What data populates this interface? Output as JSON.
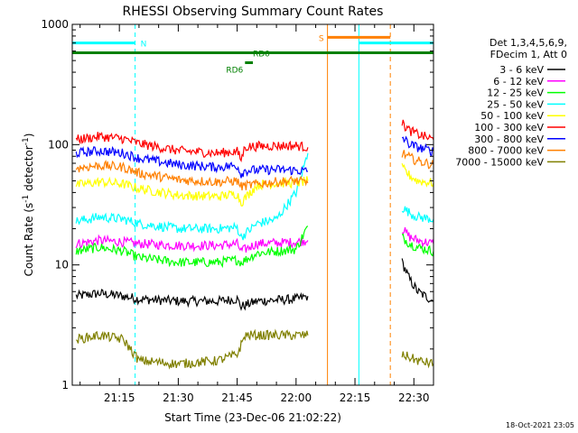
{
  "chart_data": {
    "type": "line",
    "title": "RHESSI Observing Summary Count Rates",
    "xlabel": "Start Time (23-Dec-06 21:02:22)",
    "ylabel": "Count Rate (s",
    "ylabel_sup1": "-1",
    "ylabel_mid": " detector",
    "ylabel_sup2": "-1",
    "ylabel_end": ")",
    "y_scale": "log",
    "ylim": [
      1,
      1000
    ],
    "y_ticks": [
      {
        "value": 1,
        "label": "1"
      },
      {
        "value": 10,
        "label": "10"
      },
      {
        "value": 100,
        "label": "100"
      },
      {
        "value": 1000,
        "label": "1000"
      }
    ],
    "xlim_minutes": [
      3,
      95
    ],
    "x_ticks": [
      {
        "minute": 15,
        "label": "21:15"
      },
      {
        "minute": 30,
        "label": "21:30"
      },
      {
        "minute": 45,
        "label": "21:45"
      },
      {
        "minute": 60,
        "label": "22:00"
      },
      {
        "minute": 75,
        "label": "22:15"
      },
      {
        "minute": 90,
        "label": "22:30"
      }
    ],
    "legend_header": [
      "Det 1,3,4,5,6,9,",
      "FDecim 1, Att 0"
    ],
    "legend_position": "right",
    "timestamp": "18-Oct-2021 23:05",
    "series": [
      {
        "name": "3 - 6 keV",
        "color": "#000000",
        "segments": [
          [
            [
              4,
              5.5
            ],
            [
              10,
              5.8
            ],
            [
              16,
              5.5
            ],
            [
              20,
              5.2
            ],
            [
              30,
              5.0
            ],
            [
              40,
              5.0
            ],
            [
              45,
              5.2
            ],
            [
              46,
              4.5
            ],
            [
              50,
              5.0
            ],
            [
              60,
              5.2
            ],
            [
              63,
              5.5
            ]
          ],
          [
            [
              87,
              10.5
            ],
            [
              89,
              7.5
            ],
            [
              91,
              6.0
            ],
            [
              95,
              5.0
            ]
          ]
        ]
      },
      {
        "name": "6 - 12 keV",
        "color": "#ff00ff",
        "segments": [
          [
            [
              4,
              15
            ],
            [
              10,
              16
            ],
            [
              16,
              15.5
            ],
            [
              20,
              15
            ],
            [
              30,
              14.5
            ],
            [
              40,
              14.5
            ],
            [
              45,
              15
            ],
            [
              46,
              13
            ],
            [
              50,
              15
            ],
            [
              60,
              15.5
            ],
            [
              63,
              16
            ]
          ],
          [
            [
              87,
              20
            ],
            [
              89,
              17
            ],
            [
              91,
              16
            ],
            [
              95,
              15
            ]
          ]
        ]
      },
      {
        "name": "12 - 25 keV",
        "color": "#00ff00",
        "segments": [
          [
            [
              4,
              13
            ],
            [
              10,
              14
            ],
            [
              16,
              13
            ],
            [
              20,
              11.5
            ],
            [
              30,
              10.5
            ],
            [
              40,
              10.5
            ],
            [
              45,
              11
            ],
            [
              46,
              10.5
            ],
            [
              50,
              12.5
            ],
            [
              60,
              13.5
            ],
            [
              63,
              21
            ]
          ],
          [
            [
              87,
              17
            ],
            [
              89,
              15
            ],
            [
              91,
              14
            ],
            [
              95,
              13
            ]
          ]
        ]
      },
      {
        "name": "25 - 50 keV",
        "color": "#00ffff",
        "segments": [
          [
            [
              4,
              23
            ],
            [
              10,
              25
            ],
            [
              16,
              24
            ],
            [
              20,
              22
            ],
            [
              30,
              20
            ],
            [
              40,
              20
            ],
            [
              45,
              20.5
            ],
            [
              46,
              17
            ],
            [
              50,
              22
            ],
            [
              55,
              24
            ],
            [
              60,
              40
            ],
            [
              63,
              85
            ]
          ],
          [
            [
              87,
              30
            ],
            [
              89,
              27
            ],
            [
              91,
              25
            ],
            [
              95,
              24
            ]
          ]
        ]
      },
      {
        "name": "50 - 100 keV",
        "color": "#ffff00",
        "segments": [
          [
            [
              4,
              46
            ],
            [
              10,
              49
            ],
            [
              16,
              47
            ],
            [
              20,
              43
            ],
            [
              30,
              38
            ],
            [
              40,
              37
            ],
            [
              45,
              39
            ],
            [
              46,
              33
            ],
            [
              50,
              46
            ],
            [
              55,
              48
            ],
            [
              60,
              48
            ],
            [
              63,
              50
            ]
          ],
          [
            [
              87,
              64
            ],
            [
              89,
              55
            ],
            [
              91,
              50
            ],
            [
              95,
              48
            ]
          ]
        ]
      },
      {
        "name": "100 - 300 keV",
        "color": "#ff0000",
        "segments": [
          [
            [
              4,
              110
            ],
            [
              10,
              117
            ],
            [
              16,
              112
            ],
            [
              20,
              102
            ],
            [
              30,
              89
            ],
            [
              40,
              85
            ],
            [
              45,
              88
            ],
            [
              46,
              75
            ],
            [
              47,
              96
            ],
            [
              55,
              98
            ],
            [
              60,
              98
            ],
            [
              63,
              95
            ]
          ],
          [
            [
              87,
              150
            ],
            [
              89,
              130
            ],
            [
              91,
              122
            ],
            [
              95,
              110
            ]
          ]
        ]
      },
      {
        "name": "300 - 800 keV",
        "color": "#0000ff",
        "segments": [
          [
            [
              4,
              85
            ],
            [
              10,
              89
            ],
            [
              16,
              85
            ],
            [
              20,
              77
            ],
            [
              30,
              68
            ],
            [
              40,
              65
            ],
            [
              45,
              67
            ],
            [
              46,
              57
            ],
            [
              47,
              61
            ],
            [
              55,
              62
            ],
            [
              60,
              61
            ],
            [
              63,
              60
            ]
          ],
          [
            [
              87,
              115
            ],
            [
              89,
              100
            ],
            [
              91,
              95
            ],
            [
              95,
              88
            ]
          ]
        ]
      },
      {
        "name": "800 - 7000 keV",
        "color": "#ff8000",
        "segments": [
          [
            [
              4,
              64
            ],
            [
              10,
              67
            ],
            [
              16,
              65
            ],
            [
              20,
              58
            ],
            [
              30,
              51
            ],
            [
              40,
              49
            ],
            [
              45,
              50
            ],
            [
              46,
              45
            ],
            [
              50,
              47
            ],
            [
              55,
              49
            ],
            [
              60,
              50
            ],
            [
              63,
              48
            ]
          ],
          [
            [
              87,
              85
            ],
            [
              89,
              78
            ],
            [
              91,
              73
            ],
            [
              95,
              68
            ]
          ]
        ]
      },
      {
        "name": "7000 - 15000 keV",
        "color": "#808000",
        "segments": [
          [
            [
              4,
              2.4
            ],
            [
              10,
              2.6
            ],
            [
              16,
              2.4
            ],
            [
              20,
              1.6
            ],
            [
              30,
              1.5
            ],
            [
              40,
              1.6
            ],
            [
              45,
              1.8
            ],
            [
              47,
              2.6
            ],
            [
              55,
              2.6
            ],
            [
              60,
              2.6
            ],
            [
              63,
              2.6
            ]
          ],
          [
            [
              87,
              1.8
            ],
            [
              91,
              1.6
            ],
            [
              95,
              1.5
            ]
          ]
        ]
      }
    ],
    "flag_bars": [
      {
        "label": "N",
        "color": "#00ffff",
        "y": 700,
        "segments": [
          [
            3,
            19
          ],
          [
            76,
            95
          ]
        ]
      },
      {
        "label": "S",
        "color": "#ff8000",
        "y": 780,
        "segments": [
          [
            68,
            84
          ]
        ]
      },
      {
        "label": "",
        "color": "#008000",
        "y": 580,
        "segments": [
          [
            3,
            95
          ]
        ]
      },
      {
        "label": "RD6",
        "color": "#008000",
        "y": 480,
        "segments": [
          [
            47,
            49
          ]
        ]
      },
      {
        "label": "RD0",
        "color": "#008000",
        "y": 580,
        "segments": [
          [
            49,
            52
          ]
        ]
      }
    ],
    "vertical_lines": [
      {
        "minute": 3,
        "color": "#00ffff",
        "style": "solid"
      },
      {
        "minute": 19,
        "color": "#00ffff",
        "style": "dashed"
      },
      {
        "minute": 68,
        "color": "#ff8000",
        "style": "solid"
      },
      {
        "minute": 76,
        "color": "#00ffff",
        "style": "solid"
      },
      {
        "minute": 84,
        "color": "#ff8000",
        "style": "dashed"
      },
      {
        "minute": 95,
        "color": "#00ffff",
        "style": "dashed"
      }
    ]
  }
}
